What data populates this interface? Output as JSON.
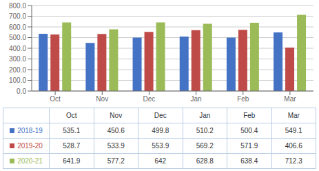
{
  "chart_data": {
    "type": "bar",
    "categories": [
      "Oct",
      "Nov",
      "Dec",
      "Jan",
      "Feb",
      "Mar"
    ],
    "series": [
      {
        "name": "2018-19",
        "color": "#4472C4",
        "values": [
          535.1,
          450.6,
          499.8,
          510.2,
          500.4,
          549.1
        ]
      },
      {
        "name": "2019-20",
        "color": "#BE4B48",
        "values": [
          528.7,
          533.9,
          553.9,
          569.2,
          571.9,
          406.6
        ]
      },
      {
        "name": "2020-21",
        "color": "#9BBB59",
        "values": [
          641.9,
          577.2,
          642.0,
          628.8,
          638.4,
          712.3
        ]
      }
    ],
    "ylim": [
      0,
      800
    ],
    "yticks": [
      {
        "value": 0,
        "label": "0.0"
      },
      {
        "value": 100,
        "label": "100.0"
      },
      {
        "value": 200,
        "label": "200.0"
      },
      {
        "value": 300,
        "label": "300.0"
      },
      {
        "value": 400,
        "label": "400.0"
      },
      {
        "value": 500,
        "label": "500.0"
      },
      {
        "value": 600,
        "label": "600.0"
      },
      {
        "value": 700,
        "label": "700.0"
      },
      {
        "value": 800,
        "label": "800.0"
      }
    ],
    "grid": true,
    "legend": "bottom"
  }
}
